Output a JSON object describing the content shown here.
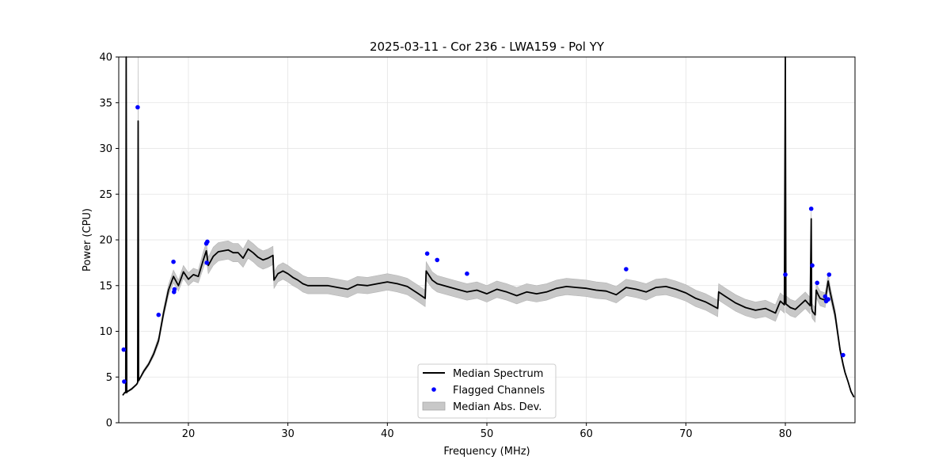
{
  "chart_data": {
    "type": "line",
    "title": "2025-03-11 - Cor 236 - LWA159 - Pol YY",
    "xlabel": "Frequency (MHz)",
    "ylabel": "Power (CPU)",
    "xlim": [
      13.0,
      87.0
    ],
    "ylim": [
      0,
      40
    ],
    "xticks": [
      20,
      30,
      40,
      50,
      60,
      70,
      80
    ],
    "yticks": [
      0,
      5,
      10,
      15,
      20,
      25,
      30,
      35,
      40
    ],
    "grid": true,
    "legend": {
      "placement": "lower center",
      "entries": [
        "Median Spectrum",
        "Flagged Channels",
        "Median Abs. Dev."
      ]
    },
    "series": [
      {
        "name": "Median Spectrum",
        "kind": "line",
        "color": "#000000",
        "x": [
          13.4,
          13.6,
          13.7,
          13.75,
          13.8,
          13.85,
          14.0,
          14.3,
          14.8,
          14.9,
          14.95,
          15.0,
          15.5,
          16.0,
          16.5,
          17.0,
          17.5,
          18.0,
          18.5,
          19.0,
          19.5,
          20.0,
          20.5,
          21.0,
          21.5,
          21.8,
          22.0,
          22.5,
          23.0,
          23.5,
          24.0,
          24.5,
          25.0,
          25.5,
          26.0,
          26.5,
          27.0,
          27.5,
          28.0,
          28.5,
          28.6,
          29.0,
          29.5,
          30.0,
          30.5,
          31.0,
          31.5,
          32.0,
          33.0,
          34.0,
          35.0,
          36.0,
          37.0,
          38.0,
          39.0,
          40.0,
          41.0,
          42.0,
          43.0,
          43.8,
          43.9,
          44.5,
          45.0,
          46.0,
          47.0,
          48.0,
          49.0,
          50.0,
          51.0,
          52.0,
          53.0,
          54.0,
          55.0,
          56.0,
          57.0,
          58.0,
          59.0,
          60.0,
          61.0,
          62.0,
          63.0,
          64.0,
          65.0,
          66.0,
          67.0,
          68.0,
          69.0,
          70.0,
          71.0,
          72.0,
          73.2,
          73.3,
          74.0,
          75.0,
          76.0,
          77.0,
          78.0,
          79.0,
          79.5,
          79.9,
          80.0,
          80.05,
          80.5,
          81.0,
          81.5,
          82.0,
          82.5,
          82.6,
          82.65,
          82.7,
          83.0,
          83.1,
          83.3,
          83.5,
          84.0,
          84.3,
          84.5,
          84.8,
          85.0,
          85.5,
          85.8,
          86.0,
          86.3,
          86.6,
          86.9
        ],
        "y": [
          3.0,
          3.3,
          3.3,
          40.0,
          3.3,
          3.4,
          3.5,
          3.7,
          4.2,
          4.4,
          33.0,
          4.6,
          5.6,
          6.4,
          7.5,
          9.0,
          12.0,
          14.5,
          16.0,
          15.0,
          16.5,
          15.7,
          16.2,
          16.0,
          17.8,
          18.8,
          17.2,
          18.2,
          18.7,
          18.8,
          18.9,
          18.6,
          18.6,
          18.0,
          19.0,
          18.6,
          18.1,
          17.8,
          18.0,
          18.3,
          15.6,
          16.3,
          16.6,
          16.3,
          15.9,
          15.6,
          15.2,
          15.0,
          15.0,
          15.0,
          14.8,
          14.6,
          15.1,
          15.0,
          15.2,
          15.4,
          15.2,
          14.9,
          14.2,
          13.6,
          16.6,
          15.6,
          15.2,
          14.9,
          14.6,
          14.3,
          14.5,
          14.1,
          14.6,
          14.3,
          13.9,
          14.3,
          14.1,
          14.3,
          14.7,
          14.9,
          14.8,
          14.7,
          14.5,
          14.4,
          14.0,
          14.8,
          14.6,
          14.3,
          14.8,
          14.9,
          14.6,
          14.2,
          13.6,
          13.2,
          12.5,
          14.3,
          13.8,
          13.1,
          12.6,
          12.3,
          12.5,
          12.0,
          13.3,
          12.9,
          40.0,
          13.0,
          12.6,
          12.4,
          12.9,
          13.4,
          12.8,
          22.3,
          12.5,
          12.2,
          11.8,
          14.5,
          14.0,
          13.6,
          13.4,
          15.5,
          14.3,
          12.8,
          11.8,
          8.0,
          6.4,
          5.5,
          4.5,
          3.4,
          2.8
        ]
      },
      {
        "name": "Flagged Channels",
        "kind": "scatter",
        "color": "#0000ff",
        "x": [
          13.5,
          13.55,
          14.9,
          17.0,
          18.5,
          18.55,
          18.6,
          21.8,
          21.9,
          21.85,
          44.0,
          45.0,
          48.0,
          64.0,
          80.0,
          82.6,
          82.7,
          83.2,
          84.0,
          84.1,
          84.3,
          84.4,
          85.8
        ],
        "y": [
          8.0,
          4.5,
          34.5,
          11.8,
          17.6,
          14.3,
          14.6,
          19.6,
          19.8,
          17.5,
          18.5,
          17.8,
          16.3,
          16.8,
          16.2,
          23.4,
          17.2,
          15.3,
          13.8,
          13.3,
          13.5,
          16.2,
          7.4
        ]
      },
      {
        "name": "Median Abs. Dev.",
        "kind": "band",
        "color": "#c8c8c8",
        "halfwidth": [
          0.0,
          0.1,
          0.1,
          0.1,
          0.1,
          0.1,
          0.1,
          0.1,
          0.1,
          0.1,
          7.0,
          0.1,
          0.2,
          0.2,
          0.3,
          0.4,
          0.5,
          0.6,
          0.7,
          0.6,
          0.7,
          0.7,
          0.7,
          0.7,
          0.9,
          0.9,
          0.9,
          1.0,
          1.0,
          1.0,
          1.0,
          1.0,
          1.0,
          1.0,
          1.0,
          1.0,
          1.0,
          1.0,
          1.0,
          1.0,
          0.9,
          0.9,
          0.9,
          0.9,
          0.9,
          0.9,
          0.9,
          0.9,
          0.9,
          0.9,
          0.9,
          0.9,
          0.9,
          0.9,
          0.9,
          0.9,
          0.9,
          0.9,
          0.9,
          0.9,
          1.0,
          0.9,
          0.9,
          0.9,
          0.9,
          0.9,
          0.9,
          0.9,
          0.9,
          0.9,
          0.9,
          0.9,
          0.9,
          0.9,
          0.9,
          0.9,
          0.9,
          0.9,
          0.9,
          0.9,
          0.9,
          0.9,
          0.9,
          0.9,
          0.9,
          0.9,
          0.9,
          0.9,
          0.9,
          0.9,
          0.9,
          0.9,
          0.9,
          0.9,
          0.9,
          0.9,
          0.9,
          0.9,
          0.9,
          0.9,
          0.0,
          0.9,
          0.9,
          0.9,
          0.9,
          0.9,
          0.9,
          0.8,
          0.8,
          0.8,
          0.8,
          0.8,
          0.8,
          0.8,
          0.8,
          0.8,
          0.7,
          0.6,
          0.6,
          0.4,
          0.3,
          0.2,
          0.1,
          0.1,
          0.0
        ]
      }
    ]
  }
}
